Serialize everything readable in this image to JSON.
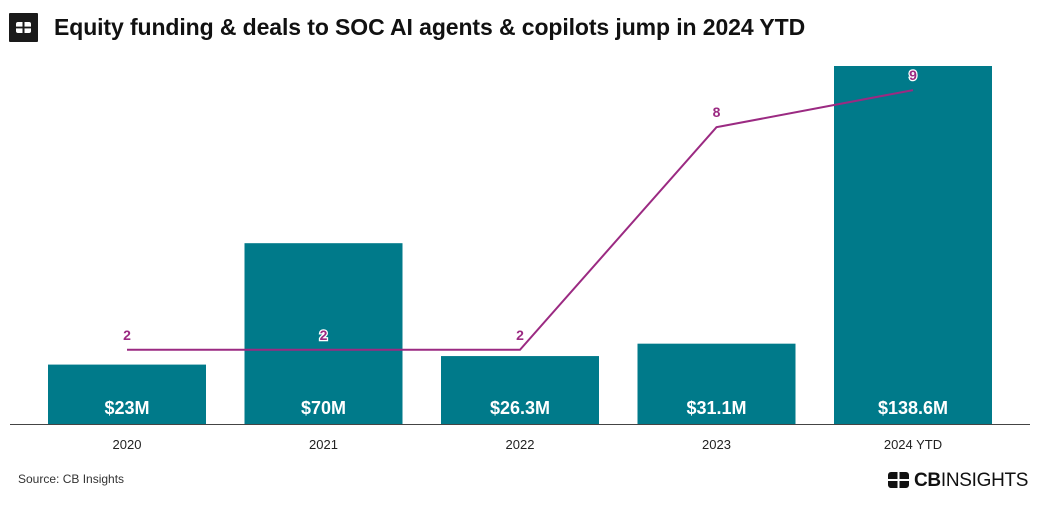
{
  "header": {
    "title": "Equity funding & deals to SOC AI agents & copilots jump in 2024 YTD"
  },
  "footer": {
    "source": "Source: CB Insights",
    "brand_bold": "CB",
    "brand_light": "INSIGHTS"
  },
  "colors": {
    "bar": "#007a8a",
    "line": "#9b2a82",
    "axis": "#444444"
  },
  "chart_data": {
    "type": "bar",
    "title": "Equity funding & deals to SOC AI agents & copilots jump in 2024 YTD",
    "categories": [
      "2020",
      "2021",
      "2022",
      "2023",
      "2024 YTD"
    ],
    "series": [
      {
        "type": "bar",
        "values": [
          23,
          70,
          26.3,
          31.1,
          138.6
        ],
        "labels": [
          "$23M",
          "$70M",
          "$26.3M",
          "$31.1M",
          "$138.6M"
        ]
      },
      {
        "type": "line",
        "values": [
          2,
          2,
          2,
          8,
          9
        ],
        "labels": [
          "2",
          "2",
          "2",
          "8",
          "9"
        ]
      }
    ],
    "y_funding_range": [
      0,
      138.6
    ],
    "y_deals_range": [
      0,
      10
    ],
    "grid": false,
    "legend": "none"
  }
}
